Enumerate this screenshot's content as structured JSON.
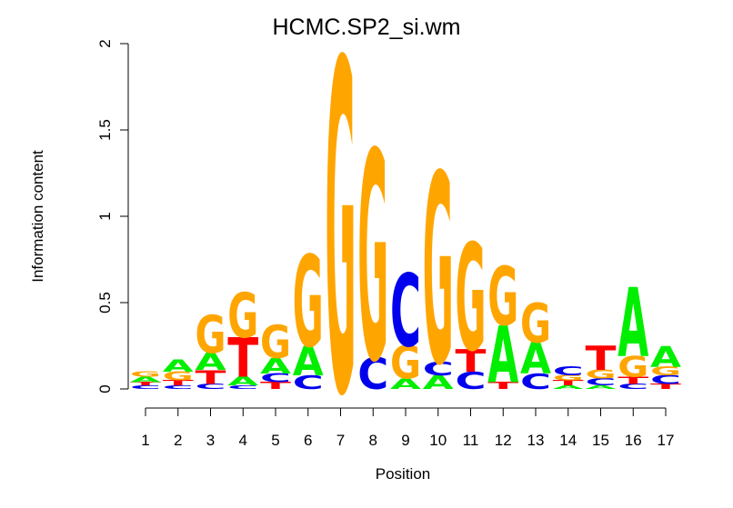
{
  "chart_data": {
    "type": "sequence-logo",
    "title": "HCMC.SP2_si.wm",
    "xlabel": "Position",
    "ylabel": "Information content",
    "ylim": [
      0,
      2
    ],
    "y_ticks": [
      "0",
      "0.5",
      "1",
      "1.5",
      "2"
    ],
    "x_ticks": [
      "1",
      "2",
      "3",
      "4",
      "5",
      "6",
      "7",
      "8",
      "9",
      "10",
      "11",
      "12",
      "13",
      "14",
      "15",
      "16",
      "17"
    ],
    "colors": {
      "A": "#00ee00",
      "C": "#0000ee",
      "G": "#ffa500",
      "T": "#ff0000"
    },
    "positions": [
      {
        "position": 1,
        "letters": [
          {
            "base": "C",
            "height": 0.02
          },
          {
            "base": "T",
            "height": 0.02
          },
          {
            "base": "A",
            "height": 0.03
          },
          {
            "base": "G",
            "height": 0.03
          }
        ]
      },
      {
        "position": 2,
        "letters": [
          {
            "base": "C",
            "height": 0.02
          },
          {
            "base": "T",
            "height": 0.03
          },
          {
            "base": "G",
            "height": 0.05
          },
          {
            "base": "A",
            "height": 0.07
          }
        ]
      },
      {
        "position": 3,
        "letters": [
          {
            "base": "C",
            "height": 0.03
          },
          {
            "base": "T",
            "height": 0.08
          },
          {
            "base": "A",
            "height": 0.1
          },
          {
            "base": "G",
            "height": 0.22
          }
        ]
      },
      {
        "position": 4,
        "letters": [
          {
            "base": "C",
            "height": 0.02
          },
          {
            "base": "A",
            "height": 0.05
          },
          {
            "base": "T",
            "height": 0.23
          },
          {
            "base": "G",
            "height": 0.26
          }
        ]
      },
      {
        "position": 5,
        "letters": [
          {
            "base": "T",
            "height": 0.04
          },
          {
            "base": "C",
            "height": 0.05
          },
          {
            "base": "A",
            "height": 0.09
          },
          {
            "base": "G",
            "height": 0.19
          }
        ]
      },
      {
        "position": 6,
        "letters": [
          {
            "base": "C",
            "height": 0.08
          },
          {
            "base": "A",
            "height": 0.17
          },
          {
            "base": "G",
            "height": 0.53
          }
        ]
      },
      {
        "position": 7,
        "letters": [
          {
            "base": "G",
            "height": 1.92
          }
        ]
      },
      {
        "position": 8,
        "letters": [
          {
            "base": "C",
            "height": 0.18
          },
          {
            "base": "G",
            "height": 1.21
          }
        ]
      },
      {
        "position": 9,
        "letters": [
          {
            "base": "A",
            "height": 0.06
          },
          {
            "base": "G",
            "height": 0.19
          },
          {
            "base": "C",
            "height": 0.42
          }
        ]
      },
      {
        "position": 10,
        "letters": [
          {
            "base": "A",
            "height": 0.08
          },
          {
            "base": "C",
            "height": 0.08
          },
          {
            "base": "G",
            "height": 1.1
          }
        ]
      },
      {
        "position": 11,
        "letters": [
          {
            "base": "C",
            "height": 0.1
          },
          {
            "base": "T",
            "height": 0.13
          },
          {
            "base": "G",
            "height": 0.62
          }
        ]
      },
      {
        "position": 12,
        "letters": [
          {
            "base": "T",
            "height": 0.04
          },
          {
            "base": "A",
            "height": 0.33
          },
          {
            "base": "G",
            "height": 0.34
          }
        ]
      },
      {
        "position": 13,
        "letters": [
          {
            "base": "C",
            "height": 0.09
          },
          {
            "base": "A",
            "height": 0.18
          },
          {
            "base": "G",
            "height": 0.23
          }
        ]
      },
      {
        "position": 14,
        "letters": [
          {
            "base": "A",
            "height": 0.02
          },
          {
            "base": "T",
            "height": 0.03
          },
          {
            "base": "G",
            "height": 0.03
          },
          {
            "base": "C",
            "height": 0.05
          }
        ]
      },
      {
        "position": 15,
        "letters": [
          {
            "base": "A",
            "height": 0.02
          },
          {
            "base": "C",
            "height": 0.04
          },
          {
            "base": "G",
            "height": 0.05
          },
          {
            "base": "T",
            "height": 0.14
          }
        ]
      },
      {
        "position": 16,
        "letters": [
          {
            "base": "C",
            "height": 0.03
          },
          {
            "base": "T",
            "height": 0.04
          },
          {
            "base": "G",
            "height": 0.12
          },
          {
            "base": "A",
            "height": 0.4
          }
        ]
      },
      {
        "position": 17,
        "letters": [
          {
            "base": "T",
            "height": 0.03
          },
          {
            "base": "C",
            "height": 0.05
          },
          {
            "base": "G",
            "height": 0.05
          },
          {
            "base": "A",
            "height": 0.12
          }
        ]
      }
    ]
  }
}
